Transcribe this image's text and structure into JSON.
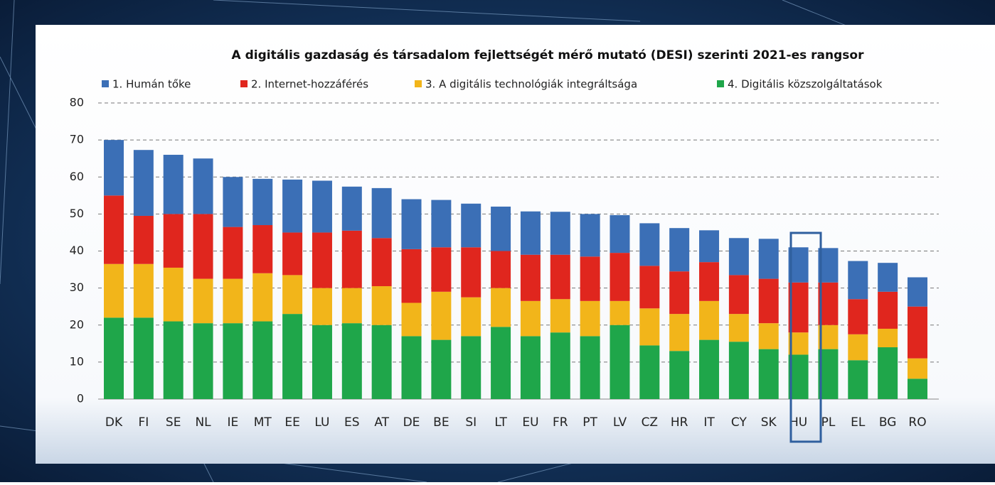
{
  "chart_data": {
    "type": "stacked_bar",
    "title": "A digitális gazdaság és társadalom fejlettségét mérő mutató (DESI) szerinti 2021-es rangsor",
    "categories": [
      "DK",
      "FI",
      "SE",
      "NL",
      "IE",
      "MT",
      "EE",
      "LU",
      "ES",
      "AT",
      "DE",
      "BE",
      "SI",
      "LT",
      "EU",
      "FR",
      "PT",
      "LV",
      "CZ",
      "HR",
      "IT",
      "CY",
      "SK",
      "HU",
      "PL",
      "EL",
      "BG",
      "RO"
    ],
    "series": [
      {
        "name": "1. Humán tőke",
        "color": "#3b6fb6",
        "values": [
          15,
          17.8,
          16,
          15,
          13.5,
          12.5,
          14.3,
          14,
          11.9,
          13.5,
          13.5,
          12.8,
          11.8,
          12,
          11.7,
          11.6,
          11.5,
          10.2,
          11.5,
          11.7,
          8.6,
          10,
          10.8,
          9.5,
          9.3,
          10.3,
          7.8,
          7.9
        ]
      },
      {
        "name": "2. Internet-hozzáférés",
        "color": "#e0261e",
        "values": [
          18.5,
          13,
          14.5,
          17.5,
          14,
          13,
          11.5,
          15,
          15.5,
          13,
          14.5,
          12,
          13.5,
          10,
          12.5,
          12,
          12,
          13,
          11.5,
          11.5,
          10.5,
          10.5,
          12,
          13.5,
          11.5,
          9.5,
          10,
          14
        ]
      },
      {
        "name": "3. A digitális technológiák integráltsága",
        "color": "#f2b51a",
        "values": [
          14.5,
          14.5,
          14.5,
          12,
          12,
          13,
          10.5,
          10,
          9.5,
          10.5,
          9,
          13,
          10.5,
          10.5,
          9.5,
          9,
          9.5,
          6.5,
          10,
          10,
          10.5,
          7.5,
          7,
          6,
          6.5,
          7,
          5,
          5.5
        ]
      },
      {
        "name": "4. Digitális közszolgáltatások",
        "color": "#1fa64a",
        "values": [
          22,
          22,
          21,
          20.5,
          20.5,
          21,
          23,
          20,
          20.5,
          20,
          17,
          16,
          17,
          19.5,
          17,
          18,
          17,
          20,
          14.5,
          13,
          16,
          15.5,
          13.5,
          12,
          13.5,
          10.5,
          14,
          5.5
        ]
      }
    ],
    "ylim": [
      0,
      80
    ],
    "yticks": [
      0,
      10,
      20,
      30,
      40,
      50,
      60,
      70,
      80
    ],
    "grid": true
  }
}
